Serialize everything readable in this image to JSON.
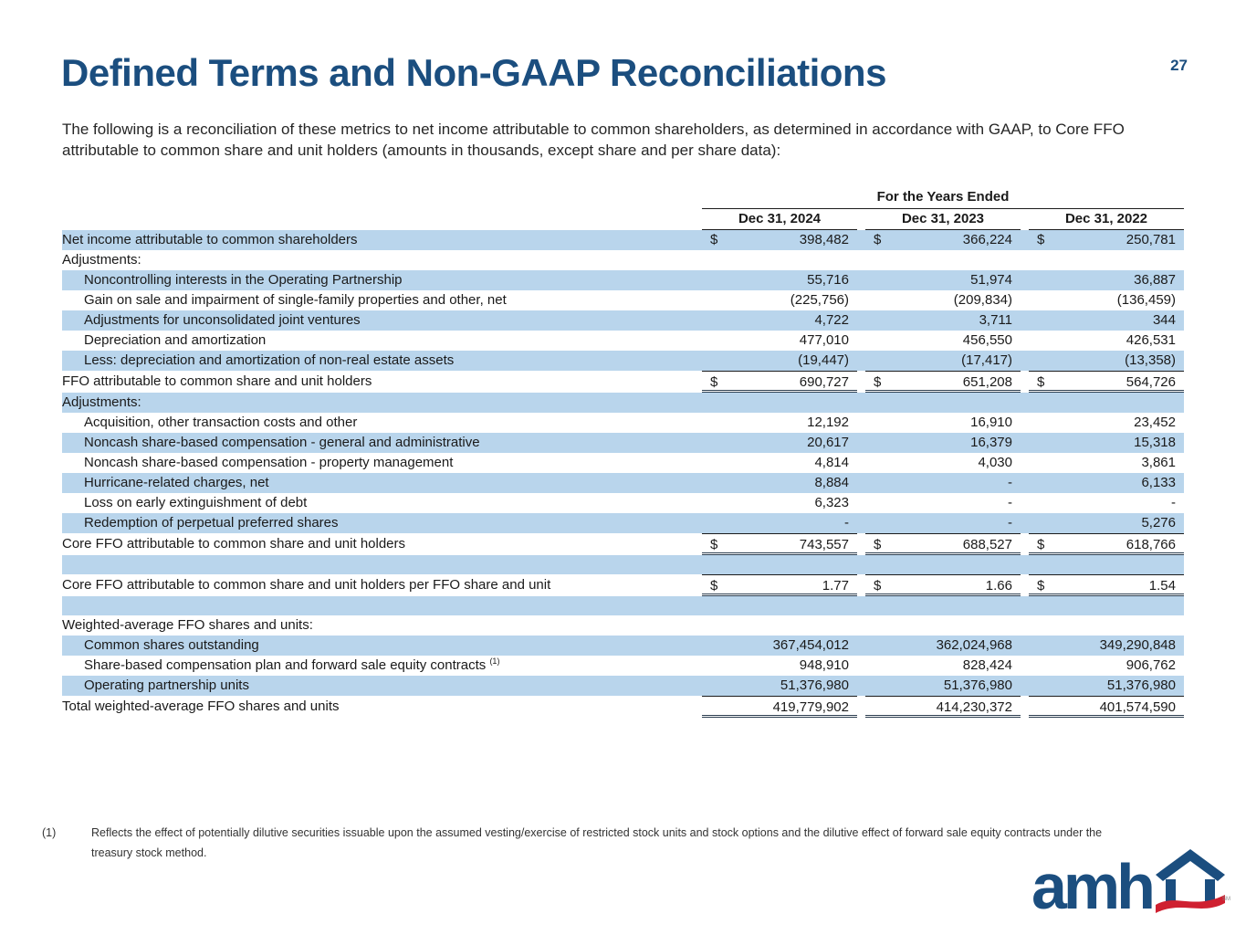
{
  "page_number": "27",
  "title": "Defined Terms and Non-GAAP Reconciliations",
  "intro": "The following is a reconciliation of these metrics to net income attributable to common shareholders, as determined in accordance with GAAP, to Core FFO attributable to common share and unit holders (amounts in thousands, except share and per share data):",
  "table": {
    "group_header": "For the Years Ended",
    "columns": [
      "Dec 31, 2024",
      "Dec 31, 2023",
      "Dec 31, 2022"
    ],
    "rows": [
      {
        "label": "Net income attributable to common shareholders",
        "indent": 0,
        "shade": true,
        "dollar": true,
        "values": [
          "398,482",
          "366,224",
          "250,781"
        ]
      },
      {
        "label": "Adjustments:",
        "indent": 0,
        "shade": false
      },
      {
        "label": "Noncontrolling interests in the Operating Partnership",
        "indent": 1,
        "shade": true,
        "values": [
          "55,716",
          "51,974",
          "36,887"
        ]
      },
      {
        "label": "Gain on sale and impairment of single-family properties and other, net",
        "indent": 1,
        "shade": false,
        "values": [
          "(225,756)",
          "(209,834)",
          "(136,459)"
        ]
      },
      {
        "label": "Adjustments for unconsolidated joint ventures",
        "indent": 1,
        "shade": true,
        "values": [
          "4,722",
          "3,711",
          "344"
        ]
      },
      {
        "label": "Depreciation and amortization",
        "indent": 1,
        "shade": false,
        "values": [
          "477,010",
          "456,550",
          "426,531"
        ]
      },
      {
        "label": "Less: depreciation and amortization of non-real estate assets",
        "indent": 1,
        "shade": true,
        "values": [
          "(19,447)",
          "(17,417)",
          "(13,358)"
        ]
      },
      {
        "label": "FFO attributable to common share and unit holders",
        "indent": 0,
        "shade": false,
        "dollar": true,
        "top_line": true,
        "double_underline": true,
        "values": [
          "690,727",
          "651,208",
          "564,726"
        ]
      },
      {
        "label": "Adjustments:",
        "indent": 0,
        "shade": true
      },
      {
        "label": "Acquisition, other transaction costs and other",
        "indent": 1,
        "shade": false,
        "values": [
          "12,192",
          "16,910",
          "23,452"
        ]
      },
      {
        "label": "Noncash share-based compensation - general and administrative",
        "indent": 1,
        "shade": true,
        "values": [
          "20,617",
          "16,379",
          "15,318"
        ]
      },
      {
        "label": "Noncash share-based compensation - property management",
        "indent": 1,
        "shade": false,
        "values": [
          "4,814",
          "4,030",
          "3,861"
        ]
      },
      {
        "label": "Hurricane-related charges, net",
        "indent": 1,
        "shade": true,
        "values": [
          "8,884",
          "-",
          "6,133"
        ]
      },
      {
        "label": "Loss on early extinguishment of debt",
        "indent": 1,
        "shade": false,
        "values": [
          "6,323",
          "-",
          "-"
        ]
      },
      {
        "label": "Redemption of perpetual preferred shares",
        "indent": 1,
        "shade": true,
        "values": [
          "-",
          "-",
          "5,276"
        ]
      },
      {
        "label": "Core FFO attributable to common share and unit holders",
        "indent": 0,
        "shade": false,
        "dollar": true,
        "top_line": true,
        "double_underline": true,
        "values": [
          "743,557",
          "688,527",
          "618,766"
        ]
      },
      {
        "label": "",
        "blank": true,
        "shade": true
      },
      {
        "label": "Core FFO attributable to common share and unit holders per FFO share and unit",
        "indent": 0,
        "shade": false,
        "dollar": true,
        "top_line": true,
        "double_underline": true,
        "values": [
          "1.77",
          "1.66",
          "1.54"
        ]
      },
      {
        "label": "",
        "blank": true,
        "shade": true
      },
      {
        "label": "Weighted-average FFO shares and units:",
        "indent": 0,
        "shade": false
      },
      {
        "label": "Common shares outstanding",
        "indent": 1,
        "shade": true,
        "values": [
          "367,454,012",
          "362,024,968",
          "349,290,848"
        ]
      },
      {
        "label": "Share-based compensation plan and forward sale equity contracts",
        "sup": "(1)",
        "indent": 1,
        "shade": false,
        "values": [
          "948,910",
          "828,424",
          "906,762"
        ]
      },
      {
        "label": "Operating partnership units",
        "indent": 1,
        "shade": true,
        "values": [
          "51,376,980",
          "51,376,980",
          "51,376,980"
        ]
      },
      {
        "label": "Total weighted-average FFO shares and units",
        "indent": 0,
        "shade": false,
        "top_line": true,
        "double_underline": true,
        "values": [
          "419,779,902",
          "414,230,372",
          "401,574,590"
        ]
      }
    ]
  },
  "footnote": {
    "marker": "(1)",
    "text": "Reflects the effect of potentially dilutive securities issuable upon the assumed vesting/exercise of restricted stock units and stock options and the dilutive effect of forward sale equity contracts under the treasury stock method."
  },
  "logo": {
    "wordmark": "amh",
    "service_mark": "SM"
  },
  "colors": {
    "accent_blue": "#1b4e7f",
    "row_highlight": "#b9d5ec",
    "logo_red": "#cf2030"
  }
}
